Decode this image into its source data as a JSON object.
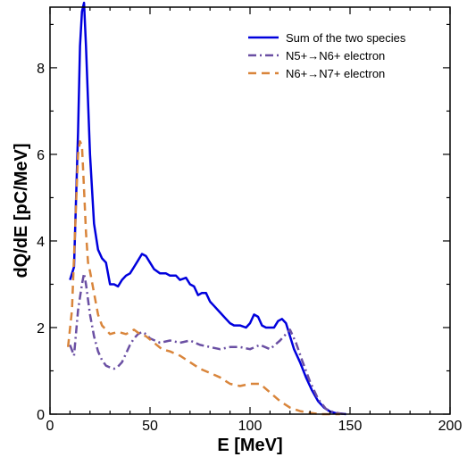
{
  "chart_data": {
    "type": "line",
    "title": "",
    "xlabel": "E [MeV]",
    "ylabel": "dQ/dE [pC/MeV]",
    "xlim": [
      0,
      200
    ],
    "ylim": [
      0,
      9.4
    ],
    "xticks": [
      0,
      50,
      100,
      150,
      200
    ],
    "yticks": [
      0,
      2,
      4,
      6,
      8
    ],
    "grid": false,
    "legend_position": "top-right",
    "series": [
      {
        "name": "Sum of the two species",
        "color": "#0000dd",
        "dash": "solid",
        "x": [
          10,
          12,
          14,
          15,
          16,
          17,
          18,
          20,
          22,
          24,
          26,
          28,
          30,
          32,
          34,
          36,
          38,
          40,
          42,
          44,
          46,
          48,
          50,
          52,
          55,
          58,
          60,
          63,
          65,
          68,
          70,
          72,
          74,
          76,
          78,
          80,
          82,
          85,
          88,
          90,
          92,
          95,
          98,
          100,
          102,
          104,
          106,
          108,
          110,
          112,
          114,
          116,
          118,
          120,
          122,
          125,
          128,
          131,
          134,
          137,
          140,
          143,
          146,
          148
        ],
        "values": [
          3.1,
          3.4,
          6.5,
          8.5,
          9.3,
          9.5,
          8.5,
          6.0,
          4.4,
          3.8,
          3.6,
          3.5,
          3.0,
          3.0,
          2.95,
          3.1,
          3.2,
          3.25,
          3.4,
          3.55,
          3.7,
          3.65,
          3.5,
          3.35,
          3.25,
          3.25,
          3.2,
          3.2,
          3.1,
          3.15,
          3.0,
          2.95,
          2.75,
          2.8,
          2.8,
          2.6,
          2.5,
          2.35,
          2.2,
          2.1,
          2.05,
          2.05,
          2.0,
          2.1,
          2.3,
          2.25,
          2.05,
          2.0,
          2.0,
          2.0,
          2.15,
          2.2,
          2.1,
          1.8,
          1.5,
          1.2,
          0.85,
          0.55,
          0.3,
          0.15,
          0.06,
          0.02,
          0.01,
          0.0
        ]
      },
      {
        "name": "N5+→N6+ electron",
        "color": "#6a4fa3",
        "dash": "dashdot",
        "x": [
          10,
          12,
          14,
          16,
          17,
          18,
          20,
          22,
          24,
          26,
          28,
          30,
          32,
          34,
          36,
          38,
          40,
          42,
          44,
          46,
          48,
          50,
          55,
          60,
          65,
          70,
          75,
          80,
          85,
          90,
          95,
          100,
          105,
          110,
          115,
          120,
          123,
          126,
          130,
          134,
          138,
          142,
          146,
          148
        ],
        "values": [
          1.6,
          1.35,
          2.4,
          3.0,
          3.25,
          3.0,
          2.3,
          1.8,
          1.45,
          1.25,
          1.12,
          1.08,
          1.05,
          1.1,
          1.2,
          1.4,
          1.6,
          1.75,
          1.85,
          1.9,
          1.85,
          1.75,
          1.65,
          1.7,
          1.65,
          1.7,
          1.6,
          1.55,
          1.5,
          1.55,
          1.55,
          1.5,
          1.6,
          1.5,
          1.7,
          1.95,
          1.65,
          1.25,
          0.75,
          0.35,
          0.12,
          0.04,
          0.01,
          0.0
        ]
      },
      {
        "name": "N6+→N7+ electron",
        "color": "#d9853b",
        "dash": "dashed",
        "x": [
          9,
          11,
          13,
          14,
          15,
          16,
          17,
          18,
          19,
          20,
          22,
          24,
          26,
          28,
          30,
          34,
          38,
          42,
          45,
          48,
          52,
          56,
          60,
          65,
          70,
          75,
          80,
          85,
          90,
          95,
          100,
          105,
          110,
          115,
          120,
          125,
          130,
          135,
          140,
          145
        ],
        "values": [
          1.55,
          2.4,
          4.8,
          6.0,
          6.3,
          6.2,
          5.2,
          4.2,
          3.5,
          3.3,
          2.8,
          2.3,
          2.05,
          1.95,
          1.85,
          1.9,
          1.85,
          1.95,
          1.85,
          1.8,
          1.65,
          1.5,
          1.45,
          1.35,
          1.2,
          1.05,
          0.95,
          0.85,
          0.7,
          0.65,
          0.7,
          0.7,
          0.5,
          0.3,
          0.15,
          0.07,
          0.03,
          0.0,
          0.0,
          0.0
        ]
      }
    ]
  }
}
